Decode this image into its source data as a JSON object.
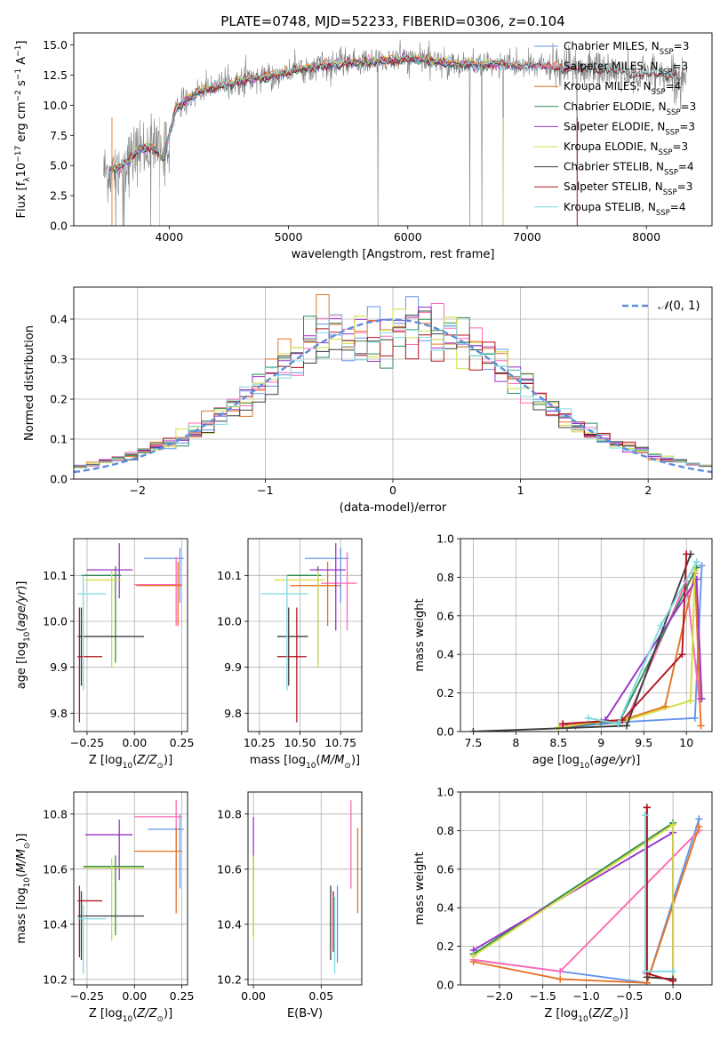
{
  "colors": {
    "Chabrier MILES": "#6495ED",
    "Salpeter MILES": "#FF69B4",
    "Kroupa MILES": "#E57324",
    "Chabrier ELODIE": "#2E8B57",
    "Salpeter ELODIE": "#9932CC",
    "Kroupa ELODIE": "#D4DC3C",
    "Chabrier STELIB": "#3C3C3C",
    "Salpeter STELIB": "#B0141E",
    "Kroupa STELIB": "#7DDAE0",
    "data_gray": "#808080",
    "normal": "#5B8DD8",
    "grid": "#B0B0B0"
  },
  "chart_data": [
    {
      "id": "spectrum",
      "type": "line",
      "title": "PLATE=0748, MJD=52233, FIBERID=0306, z=0.104",
      "xlabel": "wavelength [Angstrom, rest frame]",
      "ylabel": "Flux [f_λ10^-17 erg cm^-2 s^-1 A^-1]",
      "xlim": [
        3200,
        8550
      ],
      "ylim": [
        0,
        16
      ],
      "xticks": [
        4000,
        5000,
        6000,
        7000,
        8000
      ],
      "yticks": [
        0.0,
        2.5,
        5.0,
        7.5,
        10.0,
        12.5,
        15.0
      ],
      "grid": false,
      "legend_position": "top-right",
      "legend": [
        {
          "label": "Chabrier MILES, N_SSP=3",
          "key": "Chabrier MILES",
          "base": "Chabrier MILES, N",
          "sub": "SSP",
          "tail": "=3"
        },
        {
          "label": "Salpeter MILES, N_SSP=3",
          "key": "Salpeter MILES",
          "base": "Salpeter MILES, N",
          "sub": "SSP",
          "tail": "=3"
        },
        {
          "label": "Kroupa MILES, N_SSP=4",
          "key": "Kroupa MILES",
          "base": "Kroupa MILES, N",
          "sub": "SSP",
          "tail": "=4"
        },
        {
          "label": "Chabrier ELODIE, N_SSP=3",
          "key": "Chabrier ELODIE",
          "base": "Chabrier ELODIE, N",
          "sub": "SSP",
          "tail": "=3"
        },
        {
          "label": "Salpeter ELODIE, N_SSP=3",
          "key": "Salpeter ELODIE",
          "base": "Salpeter ELODIE, N",
          "sub": "SSP",
          "tail": "=3"
        },
        {
          "label": "Kroupa ELODIE, N_SSP=3",
          "key": "Kroupa ELODIE",
          "base": "Kroupa ELODIE, N",
          "sub": "SSP",
          "tail": "=3"
        },
        {
          "label": "Chabrier STELIB, N_SSP=4",
          "key": "Chabrier STELIB",
          "base": "Chabrier STELIB, N",
          "sub": "SSP",
          "tail": "=4"
        },
        {
          "label": "Salpeter STELIB, N_SSP=3",
          "key": "Salpeter STELIB",
          "base": "Salpeter STELIB, N",
          "sub": "SSP",
          "tail": "=3"
        },
        {
          "label": "Kroupa STELIB, N_SSP=4",
          "key": "Kroupa STELIB",
          "base": "Kroupa STELIB, N",
          "sub": "SSP",
          "tail": "=4"
        }
      ],
      "continuum_wavelength": [
        3450,
        3550,
        3650,
        3750,
        3850,
        3950,
        4050,
        4150,
        4300,
        4500,
        4700,
        4900,
        5100,
        5300,
        5500,
        5700,
        5900,
        6100,
        6300,
        6500,
        6700,
        6900,
        7100,
        7300,
        7500,
        7700,
        7900,
        8100,
        8300
      ],
      "continuum_flux": [
        4.5,
        4.7,
        5.3,
        6.3,
        6.6,
        5.6,
        9.5,
        10.5,
        11.3,
        11.8,
        12.2,
        12.5,
        13.0,
        13.3,
        13.5,
        13.6,
        13.8,
        13.8,
        13.5,
        13.4,
        13.4,
        13.3,
        13.3,
        13.0,
        13.1,
        12.9,
        12.6,
        12.6,
        12.3
      ],
      "model_fits": [
        {
          "name": "Chabrier MILES",
          "xrange": [
            3500,
            7400
          ]
        },
        {
          "name": "Salpeter MILES",
          "xrange": [
            3500,
            7400
          ]
        },
        {
          "name": "Kroupa MILES",
          "xrange": [
            3500,
            7400
          ]
        },
        {
          "name": "Chabrier ELODIE",
          "xrange": [
            3500,
            6800
          ]
        },
        {
          "name": "Salpeter ELODIE",
          "xrange": [
            3500,
            6800
          ]
        },
        {
          "name": "Kroupa ELODIE",
          "xrange": [
            3500,
            6800
          ]
        },
        {
          "name": "Chabrier STELIB",
          "xrange": [
            3500,
            8300
          ]
        },
        {
          "name": "Salpeter STELIB",
          "xrange": [
            3500,
            8300
          ]
        },
        {
          "name": "Kroupa STELIB",
          "xrange": [
            3500,
            8300
          ]
        }
      ]
    },
    {
      "id": "residuals",
      "type": "step",
      "xlabel": "(data-model)/error",
      "ylabel": "Normed distribution",
      "xlim": [
        -2.5,
        2.5
      ],
      "ylim": [
        0,
        0.48
      ],
      "xticks": [
        -2,
        -1,
        0,
        1,
        2
      ],
      "xticklabels": [
        "−2",
        "−1",
        "0",
        "1",
        "2"
      ],
      "yticks": [
        0.0,
        0.1,
        0.2,
        0.3,
        0.4
      ],
      "grid": true,
      "legend_position": "top-right",
      "legend": [
        {
          "label": "N(0,1)",
          "script": "𝒩",
          "args": "(0, 1)",
          "style": "dashed"
        }
      ],
      "bin_width": 0.1,
      "normal": {
        "mean": 0,
        "sigma": 1
      }
    },
    {
      "id": "age_vs_Z",
      "type": "errorbar",
      "xlabel": "Z [log10(Z/Z⊙)]",
      "ylabel": "age [log10(age/yr)]",
      "xlim": [
        -0.32,
        0.28
      ],
      "ylim": [
        9.76,
        10.18
      ],
      "xticks": [
        -0.25,
        0.0,
        0.25
      ],
      "xticklabels": [
        "−0.25",
        "0.00",
        "0.25"
      ],
      "yticks": [
        9.8,
        9.9,
        10.0,
        10.1
      ],
      "grid": true,
      "points": [
        {
          "name": "Chabrier MILES",
          "x": 0.24,
          "xlo": 0.05,
          "xhi": 0.26,
          "y": 10.137,
          "ylo": 10.04,
          "yhi": 10.16
        },
        {
          "name": "Salpeter MILES",
          "x": 0.22,
          "xlo": 0.0,
          "xhi": 0.25,
          "y": 10.08,
          "ylo": 9.99,
          "yhi": 10.14
        },
        {
          "name": "Kroupa MILES",
          "x": 0.23,
          "xlo": 0.01,
          "xhi": 0.25,
          "y": 10.078,
          "ylo": 9.99,
          "yhi": 10.13
        },
        {
          "name": "Chabrier ELODIE",
          "x": -0.1,
          "xlo": -0.28,
          "xhi": -0.07,
          "y": 10.1,
          "ylo": 9.91,
          "yhi": 10.12
        },
        {
          "name": "Salpeter ELODIE",
          "x": -0.08,
          "xlo": -0.25,
          "xhi": -0.01,
          "y": 10.112,
          "ylo": 10.05,
          "yhi": 10.17
        },
        {
          "name": "Kroupa ELODIE",
          "x": -0.12,
          "xlo": -0.26,
          "xhi": -0.07,
          "y": 10.09,
          "ylo": 9.9,
          "yhi": 10.11
        },
        {
          "name": "Chabrier STELIB",
          "x": -0.28,
          "xlo": -0.3,
          "xhi": 0.05,
          "y": 9.967,
          "ylo": 9.86,
          "yhi": 10.03
        },
        {
          "name": "Salpeter STELIB",
          "x": -0.29,
          "xlo": -0.3,
          "xhi": -0.17,
          "y": 9.923,
          "ylo": 9.78,
          "yhi": 10.03
        },
        {
          "name": "Kroupa STELIB",
          "x": -0.27,
          "xlo": -0.3,
          "xhi": -0.15,
          "y": 10.06,
          "ylo": 9.85,
          "yhi": 10.1
        }
      ]
    },
    {
      "id": "age_vs_mass",
      "type": "errorbar",
      "xlabel": "mass [log10(M/M⊙)]",
      "ylabel": "",
      "xlim": [
        10.18,
        10.88
      ],
      "ylim": [
        9.76,
        10.18
      ],
      "xticks": [
        10.25,
        10.5,
        10.75
      ],
      "xticklabels": [
        "10.25",
        "10.50",
        "10.75"
      ],
      "yticks": [
        9.8,
        9.9,
        10.0,
        10.1
      ],
      "grid": true,
      "points": [
        {
          "name": "Chabrier MILES",
          "x": 10.75,
          "xlo": 10.53,
          "xhi": 10.8,
          "y": 10.137,
          "ylo": 10.04,
          "yhi": 10.16
        },
        {
          "name": "Salpeter MILES",
          "x": 10.79,
          "xlo": 10.63,
          "xhi": 10.85,
          "y": 10.083,
          "ylo": 9.98,
          "yhi": 10.15
        },
        {
          "name": "Kroupa MILES",
          "x": 10.67,
          "xlo": 10.44,
          "xhi": 10.75,
          "y": 10.078,
          "ylo": 9.99,
          "yhi": 10.13
        },
        {
          "name": "Chabrier ELODIE",
          "x": 10.61,
          "xlo": 10.42,
          "xhi": 10.63,
          "y": 10.1,
          "ylo": 9.91,
          "yhi": 10.12
        },
        {
          "name": "Salpeter ELODIE",
          "x": 10.72,
          "xlo": 10.56,
          "xhi": 10.78,
          "y": 10.112,
          "ylo": 9.98,
          "yhi": 10.17
        },
        {
          "name": "Kroupa ELODIE",
          "x": 10.61,
          "xlo": 10.34,
          "xhi": 10.65,
          "y": 10.09,
          "ylo": 9.9,
          "yhi": 10.11
        },
        {
          "name": "Chabrier STELIB",
          "x": 10.43,
          "xlo": 10.36,
          "xhi": 10.55,
          "y": 9.967,
          "ylo": 9.86,
          "yhi": 10.03
        },
        {
          "name": "Salpeter STELIB",
          "x": 10.48,
          "xlo": 10.36,
          "xhi": 10.54,
          "y": 9.923,
          "ylo": 9.78,
          "yhi": 10.03
        },
        {
          "name": "Kroupa STELIB",
          "x": 10.42,
          "xlo": 10.26,
          "xhi": 10.55,
          "y": 10.06,
          "ylo": 9.85,
          "yhi": 10.1
        }
      ]
    },
    {
      "id": "massweight_vs_age",
      "type": "line",
      "xlabel": "age [log10(age/yr)]",
      "ylabel": "mass weight",
      "xlim": [
        7.35,
        10.3
      ],
      "ylim": [
        0,
        1.0
      ],
      "xticks": [
        7.5,
        8.0,
        8.5,
        9.0,
        9.5,
        10.0
      ],
      "yticks": [
        0.0,
        0.2,
        0.4,
        0.6,
        0.8,
        1.0
      ],
      "grid": true,
      "series": [
        {
          "name": "Chabrier MILES",
          "x": [
            8.5,
            9.3,
            10.1,
            10.18
          ],
          "y": [
            0.02,
            0.05,
            0.07,
            0.86
          ]
        },
        {
          "name": "Salpeter MILES",
          "x": [
            8.55,
            9.3,
            10.0,
            10.15
          ],
          "y": [
            0.03,
            0.06,
            0.78,
            0.17
          ]
        },
        {
          "name": "Kroupa MILES",
          "x": [
            8.55,
            9.25,
            9.75,
            10.1,
            10.17
          ],
          "y": [
            0.04,
            0.06,
            0.13,
            0.82,
            0.03
          ]
        },
        {
          "name": "Chabrier ELODIE",
          "x": [
            8.6,
            9.0,
            9.2,
            10.12
          ],
          "y": [
            0.02,
            0.05,
            0.04,
            0.85
          ]
        },
        {
          "name": "Salpeter ELODIE",
          "x": [
            8.7,
            9.05,
            10.12,
            10.18
          ],
          "y": [
            0.03,
            0.06,
            0.79,
            0.17
          ]
        },
        {
          "name": "Kroupa ELODIE",
          "x": [
            8.5,
            8.95,
            9.3,
            10.05,
            10.1
          ],
          "y": [
            0.02,
            0.05,
            0.06,
            0.16,
            0.84
          ]
        },
        {
          "name": "Chabrier STELIB",
          "x": [
            7.5,
            9.3,
            10.05
          ],
          "y": [
            0.0,
            0.03,
            0.92
          ]
        },
        {
          "name": "Salpeter STELIB",
          "x": [
            8.55,
            9.25,
            9.95,
            10.0
          ],
          "y": [
            0.04,
            0.06,
            0.4,
            0.92
          ]
        },
        {
          "name": "Kroupa STELIB",
          "x": [
            8.85,
            9.2,
            9.7,
            10.12
          ],
          "y": [
            0.07,
            0.04,
            0.55,
            0.88
          ]
        }
      ]
    },
    {
      "id": "mass_vs_Z",
      "type": "errorbar",
      "xlabel": "Z [log10(Z/Z⊙)]",
      "ylabel": "mass [log10(M/M⊙)]",
      "xlim": [
        -0.32,
        0.28
      ],
      "ylim": [
        10.18,
        10.88
      ],
      "xticks": [
        -0.25,
        0.0,
        0.25
      ],
      "xticklabels": [
        "−0.25",
        "0.00",
        "0.25"
      ],
      "yticks": [
        10.2,
        10.4,
        10.6,
        10.8
      ],
      "grid": true,
      "points": [
        {
          "name": "Chabrier MILES",
          "x": 0.24,
          "xlo": 0.07,
          "xhi": 0.26,
          "y": 10.745,
          "ylo": 10.53,
          "yhi": 10.8
        },
        {
          "name": "Salpeter MILES",
          "x": 0.22,
          "xlo": 0.0,
          "xhi": 0.25,
          "y": 10.79,
          "ylo": 10.6,
          "yhi": 10.85
        },
        {
          "name": "Kroupa MILES",
          "x": 0.22,
          "xlo": 0.0,
          "xhi": 0.25,
          "y": 10.665,
          "ylo": 10.44,
          "yhi": 10.75
        },
        {
          "name": "Chabrier ELODIE",
          "x": -0.1,
          "xlo": -0.27,
          "xhi": 0.05,
          "y": 10.61,
          "ylo": 10.36,
          "yhi": 10.65
        },
        {
          "name": "Salpeter ELODIE",
          "x": -0.08,
          "xlo": -0.26,
          "xhi": -0.01,
          "y": 10.725,
          "ylo": 10.56,
          "yhi": 10.78
        },
        {
          "name": "Kroupa ELODIE",
          "x": -0.12,
          "xlo": -0.27,
          "xhi": 0.05,
          "y": 10.605,
          "ylo": 10.34,
          "yhi": 10.64
        },
        {
          "name": "Chabrier STELIB",
          "x": -0.28,
          "xlo": -0.3,
          "xhi": 0.05,
          "y": 10.43,
          "ylo": 10.27,
          "yhi": 10.52
        },
        {
          "name": "Salpeter STELIB",
          "x": -0.29,
          "xlo": -0.3,
          "xhi": -0.17,
          "y": 10.485,
          "ylo": 10.28,
          "yhi": 10.54
        },
        {
          "name": "Kroupa STELIB",
          "x": -0.27,
          "xlo": -0.3,
          "xhi": -0.15,
          "y": 10.42,
          "ylo": 10.22,
          "yhi": 10.47
        }
      ]
    },
    {
      "id": "mass_vs_ebv",
      "type": "errorbar",
      "xlabel": "E(B-V)",
      "ylabel": "",
      "xlim": [
        -0.004,
        0.08
      ],
      "ylim": [
        10.18,
        10.88
      ],
      "xticks": [
        0.0,
        0.05
      ],
      "xticklabels": [
        "0.00",
        "0.05"
      ],
      "yticks": [
        10.2,
        10.4,
        10.6,
        10.8
      ],
      "grid": true,
      "points": [
        {
          "name": "Chabrier MILES",
          "x": 0.062,
          "ylo": 10.26,
          "yhi": 10.54
        },
        {
          "name": "Salpeter MILES",
          "x": 0.072,
          "ylo": 10.53,
          "yhi": 10.85
        },
        {
          "name": "Kroupa MILES",
          "x": 0.077,
          "ylo": 10.44,
          "yhi": 10.75
        },
        {
          "name": "Chabrier ELODIE",
          "x": 0.0,
          "ylo": 10.36,
          "yhi": 10.65
        },
        {
          "name": "Salpeter ELODIE",
          "x": 0.0,
          "ylo": 10.56,
          "yhi": 10.79
        },
        {
          "name": "Kroupa ELODIE",
          "x": 0.0,
          "ylo": 10.34,
          "yhi": 10.65
        },
        {
          "name": "Chabrier STELIB",
          "x": 0.057,
          "ylo": 10.27,
          "yhi": 10.54
        },
        {
          "name": "Salpeter STELIB",
          "x": 0.059,
          "ylo": 10.3,
          "yhi": 10.52
        },
        {
          "name": "Kroupa STELIB",
          "x": 0.06,
          "ylo": 10.22,
          "yhi": 10.5
        }
      ]
    },
    {
      "id": "massweight_vs_Z",
      "type": "line",
      "xlabel": "Z [log10(Z/Z⊙)]",
      "ylabel": "mass weight",
      "xlim": [
        -2.45,
        0.45
      ],
      "ylim": [
        0,
        1.0
      ],
      "xticks": [
        -2.0,
        -1.5,
        -1.0,
        -0.5,
        0.0
      ],
      "xticklabels": [
        "−2.0",
        "−1.5",
        "−1.0",
        "−0.5",
        "0.0"
      ],
      "yticks": [
        0.0,
        0.2,
        0.4,
        0.6,
        0.8,
        1.0
      ],
      "grid": true,
      "series": [
        {
          "name": "Chabrier MILES",
          "x": [
            -2.3,
            -0.3,
            0.3
          ],
          "y": [
            0.13,
            0.01,
            0.86
          ]
        },
        {
          "name": "Salpeter MILES",
          "x": [
            -2.3,
            -1.3,
            0.3
          ],
          "y": [
            0.13,
            0.07,
            0.8
          ]
        },
        {
          "name": "Kroupa MILES",
          "x": [
            -2.3,
            -1.3,
            -0.3,
            0.3
          ],
          "y": [
            0.12,
            0.03,
            0.01,
            0.82
          ]
        },
        {
          "name": "Chabrier ELODIE",
          "x": [
            -2.3,
            0.0,
            0.0
          ],
          "y": [
            0.16,
            0.84,
            0.03
          ]
        },
        {
          "name": "Salpeter ELODIE",
          "x": [
            -2.3,
            0.0,
            0.0
          ],
          "y": [
            0.18,
            0.79,
            0.03
          ]
        },
        {
          "name": "Kroupa ELODIE",
          "x": [
            -2.3,
            0.0,
            0.0
          ],
          "y": [
            0.15,
            0.83,
            0.02
          ]
        },
        {
          "name": "Chabrier STELIB",
          "x": [
            -0.3,
            -0.3,
            0.0
          ],
          "y": [
            0.92,
            0.04,
            0.03
          ]
        },
        {
          "name": "Salpeter STELIB",
          "x": [
            -0.3,
            -0.3,
            0.0
          ],
          "y": [
            0.92,
            0.06,
            0.02
          ]
        },
        {
          "name": "Kroupa STELIB",
          "x": [
            -0.32,
            -0.32,
            0.0
          ],
          "y": [
            0.88,
            0.07,
            0.07
          ]
        }
      ]
    }
  ]
}
